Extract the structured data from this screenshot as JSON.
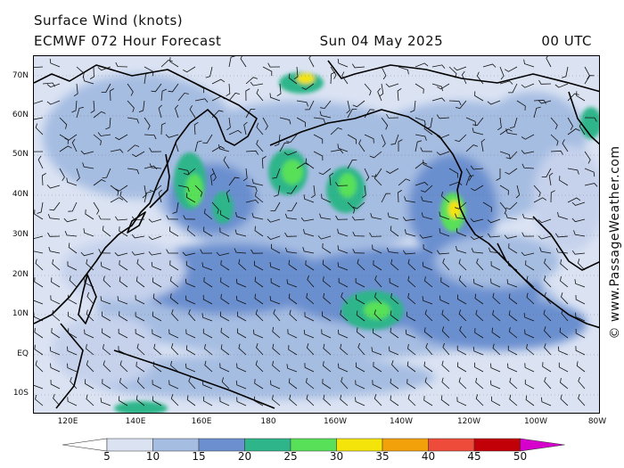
{
  "header": {
    "title": "Surface Wind (knots)",
    "model": "ECMWF 072 Hour Forecast",
    "date": "Sun 04 May 2025",
    "time": "00 UTC"
  },
  "credit": "© www.PassageWeather.com",
  "map": {
    "region": "North Pacific",
    "lat_labels": [
      "70N",
      "60N",
      "50N",
      "40N",
      "30N",
      "20N",
      "10N",
      "EQ",
      "10S"
    ],
    "lon_labels": [
      "120E",
      "140E",
      "160E",
      "180",
      "160W",
      "140W",
      "120W",
      "100W",
      "80W"
    ],
    "ocean_base_color": "#dfe6f4",
    "wind_barbs": true
  },
  "legend": {
    "unit": "knots",
    "labels": [
      "5",
      "10",
      "15",
      "20",
      "25",
      "30",
      "35",
      "40",
      "45",
      "50"
    ],
    "colors": [
      "#ffffff",
      "#dbe3f3",
      "#a6bde2",
      "#6b8fcf",
      "#2eb58a",
      "#58e058",
      "#f4e40a",
      "#f3a10b",
      "#ee4b3a",
      "#c20007",
      "#d600cc"
    ]
  }
}
